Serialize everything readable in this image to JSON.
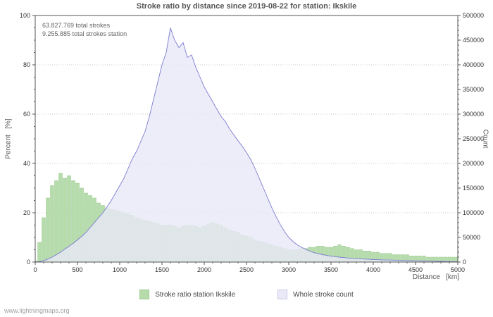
{
  "watermark": "www.lightningmaps.org",
  "chart_data": {
    "type": "combo",
    "title": "Stroke ratio by distance since 2019-08-22 for station: Ikskile",
    "xlabel": "Distance   [km]",
    "ylabel_left": "Percent   [%]",
    "ylabel_right": "Count",
    "annotations": [
      "63.827.769 total strokes",
      "9.255.885 total strokes station"
    ],
    "x_range": [
      0,
      5000
    ],
    "y_left_range": [
      0,
      100
    ],
    "y_right_range": [
      0,
      500000
    ],
    "grid": true,
    "legend_position": "bottom",
    "x_ticks": [
      0,
      500,
      1000,
      1500,
      2000,
      2500,
      3000,
      3500,
      4000,
      4500,
      5000
    ],
    "y_left_ticks": [
      0,
      20,
      40,
      60,
      80,
      100
    ],
    "y_right_ticks": [
      0,
      50000,
      100000,
      150000,
      200000,
      250000,
      300000,
      350000,
      400000,
      450000,
      500000
    ],
    "x": [
      0,
      50,
      100,
      150,
      200,
      250,
      300,
      350,
      400,
      450,
      500,
      550,
      600,
      650,
      700,
      750,
      800,
      850,
      900,
      950,
      1000,
      1050,
      1100,
      1150,
      1200,
      1250,
      1300,
      1350,
      1400,
      1450,
      1500,
      1550,
      1600,
      1650,
      1700,
      1750,
      1800,
      1850,
      1900,
      1950,
      2000,
      2050,
      2100,
      2150,
      2200,
      2250,
      2300,
      2350,
      2400,
      2450,
      2500,
      2550,
      2600,
      2650,
      2700,
      2750,
      2800,
      2850,
      2900,
      2950,
      3000,
      3050,
      3100,
      3150,
      3200,
      3250,
      3300,
      3350,
      3400,
      3450,
      3500,
      3550,
      3600,
      3650,
      3700,
      3750,
      3800,
      3850,
      3900,
      3950,
      4000,
      4050,
      4100,
      4150,
      4200,
      4250,
      4300,
      4350,
      4400,
      4450,
      4500,
      4550,
      4600,
      4650,
      4700,
      4750,
      4800,
      4850,
      4900,
      4950,
      5000
    ],
    "series": [
      {
        "name": "Stroke ratio station Ikskile",
        "type": "bar",
        "axis": "left",
        "color": "#b5dcaa",
        "edge_color": "#96c78d",
        "values": [
          0.5,
          8,
          18,
          26,
          31,
          33,
          36,
          34,
          35,
          33,
          32,
          30,
          28,
          27,
          26,
          24,
          23,
          22,
          21.5,
          21,
          20.5,
          20,
          19.5,
          19,
          18,
          17.5,
          17,
          16.5,
          16,
          15.5,
          15,
          15,
          15,
          14.5,
          14,
          14.5,
          15,
          15,
          14.5,
          14,
          14.5,
          15.5,
          16,
          15.5,
          15,
          14,
          13,
          12.5,
          12,
          11,
          10.5,
          10,
          9,
          8.5,
          8,
          7.5,
          7,
          6.5,
          6,
          5.5,
          5,
          5,
          5,
          5.5,
          5.5,
          6,
          6,
          6.5,
          6.5,
          6,
          6,
          6.5,
          7,
          6.5,
          6,
          5.5,
          5,
          5,
          4.5,
          4.5,
          4,
          4,
          3.5,
          3.5,
          3.5,
          3,
          3,
          3,
          3,
          2.5,
          2.5,
          2.5,
          2.5,
          2,
          2,
          2,
          2,
          2,
          2,
          2,
          2
        ]
      },
      {
        "name": "Whole stroke count",
        "type": "area",
        "axis": "right",
        "color": "#e9e9f8",
        "line_color": "#7b7bd0",
        "values": [
          0,
          1000,
          3000,
          6000,
          10000,
          15000,
          20000,
          26000,
          32000,
          38000,
          45000,
          52000,
          60000,
          70000,
          80000,
          90000,
          100000,
          112000,
          125000,
          140000,
          155000,
          170000,
          190000,
          210000,
          225000,
          245000,
          265000,
          295000,
          330000,
          365000,
          400000,
          425000,
          475000,
          450000,
          435000,
          445000,
          415000,
          420000,
          395000,
          375000,
          355000,
          340000,
          325000,
          310000,
          295000,
          285000,
          270000,
          258000,
          246000,
          235000,
          222000,
          208000,
          190000,
          170000,
          150000,
          130000,
          110000,
          92000,
          76000,
          62000,
          50000,
          42000,
          35000,
          30000,
          26000,
          22000,
          19000,
          17000,
          15000,
          13500,
          12000,
          11000,
          10000,
          9000,
          8200,
          7500,
          7000,
          6500,
          6000,
          5500,
          5000,
          4800,
          4500,
          4200,
          4000,
          3800,
          3500,
          3200,
          3000,
          2800,
          2600,
          2400,
          2200,
          2000,
          1800,
          1600,
          1400,
          1200,
          1000,
          800,
          600
        ]
      }
    ]
  }
}
